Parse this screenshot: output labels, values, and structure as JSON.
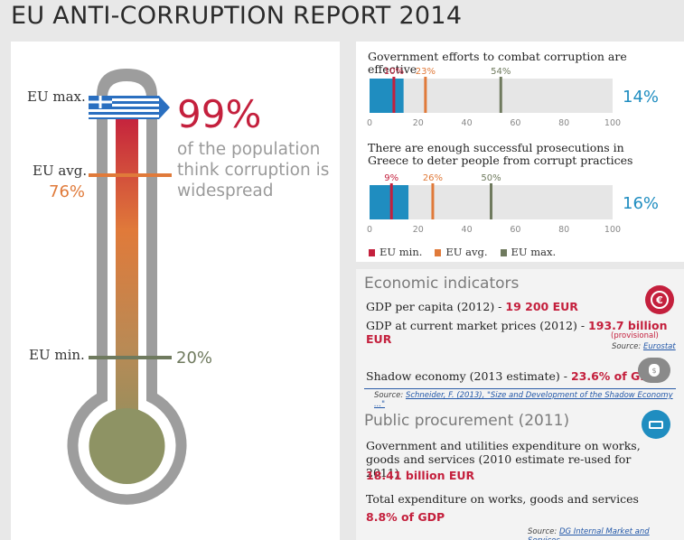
{
  "title": "EU ANTI-CORRUPTION REPORT 2014",
  "thermometer": {
    "eu_max_label": "EU max.",
    "eu_avg_label": "EU avg.",
    "eu_min_label": "EU min.",
    "eu_avg_value": "76%",
    "eu_min_value": "20%",
    "country_value": "99%",
    "country_text": "of the population think corruption is widespread",
    "level_percent": 99
  },
  "chart_data": [
    {
      "type": "bar",
      "title": "Government efforts to combat corruption are effective",
      "value": 14,
      "value_label": "14%",
      "xlim": [
        0,
        100
      ],
      "ticks": [
        "0",
        "20",
        "40",
        "60",
        "80",
        "100"
      ],
      "markers": [
        {
          "name": "EU min.",
          "value": 10,
          "label": "10%"
        },
        {
          "name": "EU avg.",
          "value": 23,
          "label": "23%"
        },
        {
          "name": "EU max.",
          "value": 54,
          "label": "54%"
        }
      ]
    },
    {
      "type": "bar",
      "title": "There are enough successful prosecutions in Greece to deter people from corrupt practices",
      "value": 16,
      "value_label": "16%",
      "xlim": [
        0,
        100
      ],
      "ticks": [
        "0",
        "20",
        "40",
        "60",
        "80",
        "100"
      ],
      "markers": [
        {
          "name": "EU min.",
          "value": 9,
          "label": "9%"
        },
        {
          "name": "EU avg.",
          "value": 26,
          "label": "26%"
        },
        {
          "name": "EU max.",
          "value": 50,
          "label": "50%"
        }
      ]
    }
  ],
  "legend": [
    "EU min.",
    "EU avg.",
    "EU max."
  ],
  "colors": {
    "min": "#c4203d",
    "avg": "#e07a3a",
    "max": "#6f7a5e",
    "bar": "#1f8dc0",
    "track": "#e6e6e6"
  },
  "economic": {
    "title": "Economic indicators",
    "gdp_capita_label": "GDP per capita (2012) -",
    "gdp_capita_value": "19 200 EUR",
    "gdp_market_label": "GDP at current market prices (2012) -",
    "gdp_market_value": "193.7 billion EUR",
    "gdp_market_note": "(provisional)",
    "source1_prefix": "Source:",
    "source1_link": "Eurostat",
    "shadow_label": "Shadow economy (2013 estimate) -",
    "shadow_value": "23.6% of GDP",
    "source2_prefix": "Source:",
    "source2_link": "Schneider, F. (2013), \"Size and Development of the Shadow Economy ...\""
  },
  "procurement": {
    "title": "Public procurement (2011)",
    "gov_label": "Government and utilities expenditure on works, goods and services (2010 estimate re-used for 2011)",
    "gov_value": "18.41 billion EUR",
    "total_label": "Total expenditure on works, goods and services",
    "total_value": "8.8% of GDP",
    "source_prefix": "Source:",
    "source_link": "DG Internal Market and Services"
  }
}
